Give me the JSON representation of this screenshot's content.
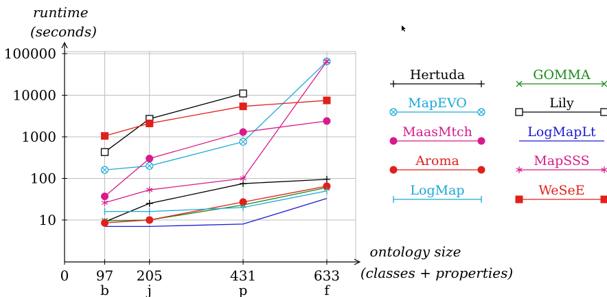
{
  "chart_data": {
    "type": "line",
    "ylabel_line1": "runtime",
    "ylabel_line2": "(seconds)",
    "xlabel_line1": "ontology  size",
    "xlabel_line2": "(classes + properties)",
    "y_scale": "log",
    "ylim": [
      1,
      100000
    ],
    "xlim": [
      0,
      700
    ],
    "grid": true,
    "legend_position": "right, two columns",
    "x_ticks": [
      {
        "value": 0,
        "label": "0",
        "sub": ""
      },
      {
        "value": 97,
        "label": "97",
        "sub": "b"
      },
      {
        "value": 205,
        "label": "205",
        "sub": "j"
      },
      {
        "value": 431,
        "label": "431",
        "sub": "p"
      },
      {
        "value": 633,
        "label": "633",
        "sub": "f"
      }
    ],
    "y_ticks": [
      {
        "value": 10,
        "label": "10"
      },
      {
        "value": 100,
        "label": "100"
      },
      {
        "value": 1000,
        "label": "1000"
      },
      {
        "value": 10000,
        "label": "10000"
      },
      {
        "value": 100000,
        "label": "100000"
      }
    ],
    "series": [
      {
        "name": "Hertuda",
        "color": "#000000",
        "marker": "plus",
        "x": [
          97,
          205,
          431,
          633
        ],
        "y": [
          9,
          25,
          75,
          95
        ]
      },
      {
        "name": "GOMMA",
        "color": "#1a8a1a",
        "marker": "cross",
        "x": [
          97,
          205,
          431,
          633
        ],
        "y": [
          9.5,
          10,
          23,
          60
        ]
      },
      {
        "name": "MapEVO",
        "color": "#1aa8d8",
        "marker": "otimes",
        "x": [
          97,
          205,
          431,
          633
        ],
        "y": [
          160,
          200,
          760,
          65000
        ]
      },
      {
        "name": "Lily",
        "color": "#000000",
        "marker": "square-open",
        "x": [
          97,
          205,
          431
        ],
        "y": [
          430,
          2700,
          11000
        ]
      },
      {
        "name": "MaasMtch",
        "color": "#d81b8a",
        "marker": "circle",
        "x": [
          97,
          205,
          431,
          633
        ],
        "y": [
          37,
          300,
          1300,
          2400
        ]
      },
      {
        "name": "LogMapLt",
        "color": "#1a1ad8",
        "marker": "none",
        "x": [
          97,
          205,
          431,
          633
        ],
        "y": [
          7,
          7,
          8,
          33
        ]
      },
      {
        "name": "Aroma",
        "color": "#e0201a",
        "marker": "circle",
        "x": [
          97,
          205,
          431,
          633
        ],
        "y": [
          8.5,
          10,
          27,
          65
        ]
      },
      {
        "name": "MapSSS",
        "color": "#d81b8a",
        "marker": "star",
        "x": [
          97,
          205,
          431,
          633
        ],
        "y": [
          26,
          53,
          100,
          65000
        ]
      },
      {
        "name": "LogMap",
        "color": "#1aa8d8",
        "marker": "bar",
        "x": [
          97,
          205,
          431,
          633
        ],
        "y": [
          16,
          16,
          20,
          50
        ]
      },
      {
        "name": "WeSeE",
        "color": "#e0201a",
        "marker": "square",
        "x": [
          97,
          205,
          431,
          633
        ],
        "y": [
          1050,
          2100,
          5400,
          7500
        ]
      }
    ]
  },
  "legend_columns": [
    [
      "Hertuda",
      "MapEVO",
      "MaasMtch",
      "Aroma",
      "LogMap"
    ],
    [
      "GOMMA",
      "Lily",
      "LogMapLt",
      "MapSSS",
      "WeSeE"
    ]
  ]
}
